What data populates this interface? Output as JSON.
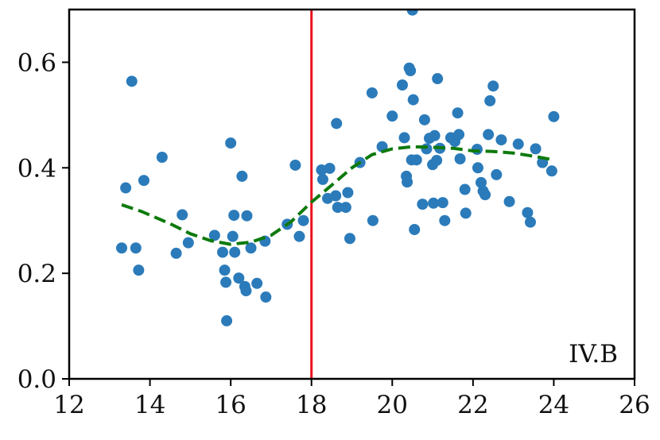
{
  "chart_data": {
    "type": "scatter",
    "title": "",
    "xlabel": "",
    "ylabel": "",
    "xlim": [
      12,
      26
    ],
    "ylim": [
      0.0,
      0.7
    ],
    "x_ticks": [
      12,
      14,
      16,
      18,
      20,
      22,
      24,
      26
    ],
    "y_ticks": [
      0.0,
      0.2,
      0.4,
      0.6
    ],
    "x_tick_labels": [
      "12",
      "14",
      "16",
      "18",
      "20",
      "22",
      "24",
      "26"
    ],
    "y_tick_labels": [
      "0.0",
      "0.2",
      "0.4",
      "0.6"
    ],
    "grid": false,
    "legend": "none",
    "annotation": "IV.B",
    "annotation_position": "bottom-right",
    "vline": {
      "x": 18,
      "color": "#e8141c"
    },
    "colors": {
      "points": "#2b7bba",
      "trend": "#0e7a0e",
      "vline": "#e8141c",
      "axes": "#000000"
    },
    "series": [
      {
        "type": "scatter",
        "points": [
          [
            13.3,
            0.248
          ],
          [
            13.4,
            0.362
          ],
          [
            13.55,
            0.564
          ],
          [
            13.65,
            0.248
          ],
          [
            13.72,
            0.206
          ],
          [
            13.85,
            0.376
          ],
          [
            14.3,
            0.42
          ],
          [
            14.65,
            0.238
          ],
          [
            14.8,
            0.311
          ],
          [
            14.95,
            0.258
          ],
          [
            15.6,
            0.272
          ],
          [
            15.8,
            0.24
          ],
          [
            15.85,
            0.206
          ],
          [
            15.88,
            0.183
          ],
          [
            15.9,
            0.11
          ],
          [
            16.0,
            0.447
          ],
          [
            16.05,
            0.27
          ],
          [
            16.08,
            0.31
          ],
          [
            16.1,
            0.24
          ],
          [
            16.2,
            0.191
          ],
          [
            16.28,
            0.384
          ],
          [
            16.35,
            0.175
          ],
          [
            16.38,
            0.167
          ],
          [
            16.4,
            0.309
          ],
          [
            16.5,
            0.248
          ],
          [
            16.65,
            0.181
          ],
          [
            16.85,
            0.261
          ],
          [
            16.87,
            0.155
          ],
          [
            17.4,
            0.293
          ],
          [
            17.6,
            0.405
          ],
          [
            17.7,
            0.27
          ],
          [
            17.8,
            0.3
          ],
          [
            18.25,
            0.396
          ],
          [
            18.28,
            0.378
          ],
          [
            18.4,
            0.342
          ],
          [
            18.45,
            0.399
          ],
          [
            18.6,
            0.347
          ],
          [
            18.62,
            0.484
          ],
          [
            18.65,
            0.325
          ],
          [
            18.85,
            0.325
          ],
          [
            18.9,
            0.353
          ],
          [
            18.95,
            0.266
          ],
          [
            19.2,
            0.41
          ],
          [
            19.5,
            0.542
          ],
          [
            19.52,
            0.3
          ],
          [
            19.75,
            0.44
          ],
          [
            20.0,
            0.498
          ],
          [
            20.25,
            0.557
          ],
          [
            20.3,
            0.457
          ],
          [
            20.35,
            0.384
          ],
          [
            20.37,
            0.373
          ],
          [
            20.42,
            0.589
          ],
          [
            20.45,
            0.584
          ],
          [
            20.48,
            0.415
          ],
          [
            20.5,
            0.699
          ],
          [
            20.52,
            0.529
          ],
          [
            20.55,
            0.283
          ],
          [
            20.6,
            0.415
          ],
          [
            20.75,
            0.331
          ],
          [
            20.8,
            0.491
          ],
          [
            20.85,
            0.436
          ],
          [
            20.92,
            0.456
          ],
          [
            21.0,
            0.406
          ],
          [
            21.02,
            0.333
          ],
          [
            21.05,
            0.461
          ],
          [
            21.1,
            0.414
          ],
          [
            21.12,
            0.569
          ],
          [
            21.18,
            0.437
          ],
          [
            21.25,
            0.334
          ],
          [
            21.3,
            0.3
          ],
          [
            21.45,
            0.457
          ],
          [
            21.55,
            0.45
          ],
          [
            21.62,
            0.504
          ],
          [
            21.65,
            0.463
          ],
          [
            21.68,
            0.417
          ],
          [
            21.8,
            0.359
          ],
          [
            21.82,
            0.314
          ],
          [
            22.1,
            0.435
          ],
          [
            22.12,
            0.4
          ],
          [
            22.2,
            0.372
          ],
          [
            22.25,
            0.356
          ],
          [
            22.3,
            0.349
          ],
          [
            22.38,
            0.463
          ],
          [
            22.42,
            0.527
          ],
          [
            22.5,
            0.555
          ],
          [
            22.58,
            0.387
          ],
          [
            22.7,
            0.453
          ],
          [
            22.9,
            0.336
          ],
          [
            23.12,
            0.445
          ],
          [
            23.35,
            0.315
          ],
          [
            23.42,
            0.297
          ],
          [
            23.55,
            0.436
          ],
          [
            23.72,
            0.41
          ],
          [
            23.95,
            0.394
          ],
          [
            24.0,
            0.497
          ]
        ]
      },
      {
        "type": "line",
        "style": "dashed",
        "points": [
          [
            13.3,
            0.33
          ],
          [
            13.8,
            0.317
          ],
          [
            14.5,
            0.294
          ],
          [
            15.0,
            0.275
          ],
          [
            15.5,
            0.262
          ],
          [
            16.0,
            0.255
          ],
          [
            16.5,
            0.259
          ],
          [
            17.0,
            0.272
          ],
          [
            17.5,
            0.298
          ],
          [
            18.0,
            0.335
          ],
          [
            18.5,
            0.367
          ],
          [
            19.0,
            0.4
          ],
          [
            19.5,
            0.425
          ],
          [
            20.0,
            0.436
          ],
          [
            20.5,
            0.44
          ],
          [
            21.0,
            0.439
          ],
          [
            21.5,
            0.437
          ],
          [
            22.0,
            0.432
          ],
          [
            22.5,
            0.431
          ],
          [
            23.0,
            0.428
          ],
          [
            23.5,
            0.422
          ],
          [
            24.0,
            0.415
          ]
        ]
      }
    ]
  }
}
